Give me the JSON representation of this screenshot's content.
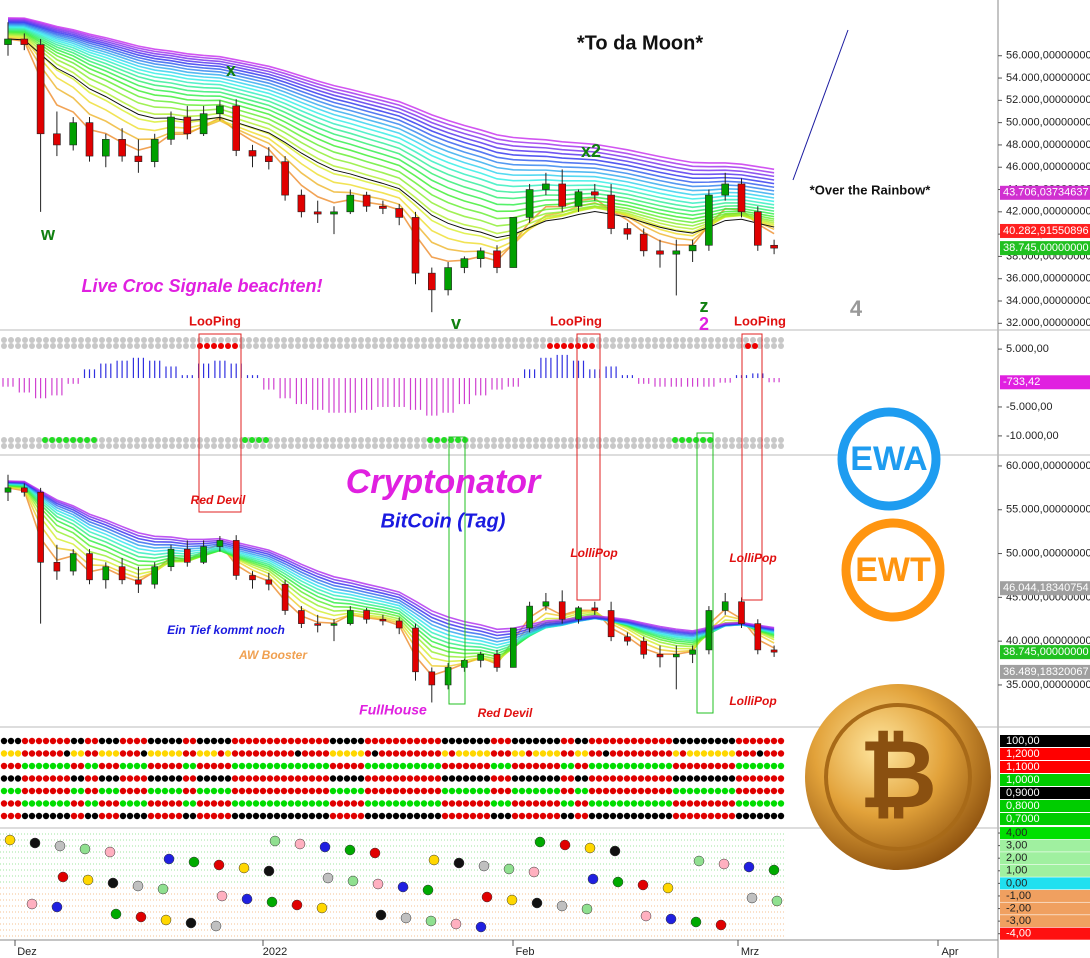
{
  "chart_data": [
    {
      "type": "candlestick",
      "title": "*To da Moon*",
      "open": [
        57000,
        57500,
        57000,
        49000,
        48000,
        50000,
        47000,
        48500,
        47000,
        46500,
        48500,
        50500,
        49000,
        50800,
        51500,
        47500,
        47000,
        46500,
        43500,
        42000,
        41800,
        42000,
        43500,
        42500,
        42300,
        41500,
        36500,
        35000,
        37000,
        37800,
        38500,
        37000,
        41500,
        44000,
        44500,
        42500,
        43800,
        43500,
        40500,
        40000,
        38500,
        38200,
        38500,
        39000,
        43500,
        44500,
        42000,
        39000
      ],
      "high": [
        59000,
        58000,
        57500,
        51000,
        50500,
        50500,
        49000,
        49500,
        48500,
        49000,
        51000,
        51500,
        51500,
        52000,
        52100,
        48000,
        47800,
        47000,
        44000,
        43000,
        42500,
        44000,
        43800,
        43000,
        42700,
        42000,
        37000,
        37500,
        38000,
        38800,
        39000,
        41500,
        44500,
        45500,
        45800,
        44000,
        44500,
        44500,
        41000,
        40500,
        39500,
        39500,
        39500,
        44000,
        45500,
        45000,
        42500,
        39500
      ],
      "low": [
        56000,
        56500,
        42000,
        47000,
        47500,
        46500,
        46000,
        46500,
        45500,
        46000,
        48000,
        48500,
        48800,
        50200,
        47000,
        46000,
        45800,
        43000,
        41500,
        41000,
        40000,
        41800,
        42000,
        41800,
        40800,
        35500,
        33000,
        34500,
        36500,
        37000,
        36500,
        37000,
        41000,
        43500,
        42000,
        42000,
        43000,
        40000,
        39500,
        38000,
        37000,
        34500,
        37500,
        38500,
        43000,
        41500,
        38500,
        38200
      ],
      "close": [
        57500,
        57000,
        49000,
        48000,
        50000,
        47000,
        48500,
        47000,
        46500,
        48500,
        50500,
        49000,
        50800,
        51500,
        47500,
        47000,
        46500,
        43500,
        42000,
        41800,
        42000,
        43500,
        42500,
        42300,
        41500,
        36500,
        35000,
        37000,
        37800,
        38500,
        37000,
        41500,
        44000,
        44500,
        42500,
        43800,
        43500,
        40500,
        40000,
        38500,
        38200,
        38500,
        39000,
        43500,
        44500,
        42000,
        39000,
        38745
      ],
      "colors": {
        "up": "#00a000",
        "down": "#e00000"
      },
      "ylim": [
        31400,
        61000
      ],
      "yticks": [
        {
          "value": 56000,
          "label": "56.000,00000000"
        },
        {
          "value": 54000,
          "label": "54.000,00000000"
        },
        {
          "value": 52000,
          "label": "52.000,00000000"
        },
        {
          "value": 50000,
          "label": "50.000,00000000"
        },
        {
          "value": 48000,
          "label": "48.000,00000000"
        },
        {
          "value": 46000,
          "label": "46.000,00000000"
        },
        {
          "value": 44000,
          "label": "44.000,00000000"
        },
        {
          "value": 42000,
          "label": "42.000,00000000"
        },
        {
          "value": 40000,
          "label": "40.000,00000000"
        },
        {
          "value": 38000,
          "label": "38.000,00000000"
        },
        {
          "value": 36000,
          "label": "36.000,00000000"
        },
        {
          "value": 34000,
          "label": "34.000,00000000"
        },
        {
          "value": 32000,
          "label": "32.000,00000000"
        }
      ],
      "price_tags": [
        {
          "value": 43706.03734637,
          "label": "43.706,03734637",
          "color": "#d030d0"
        },
        {
          "value": 40282.91550896,
          "label": "40.282,91550896",
          "color": "#ff2020"
        },
        {
          "value": 38745,
          "label": "38.745,00000000",
          "color": "#20c020"
        }
      ],
      "annotations": [
        "x",
        "w",
        "x2",
        "v",
        "z",
        "2",
        "4",
        "*Over the Rainbow*",
        "Live Croc Signale beachten!",
        "LooPing",
        "LooPing",
        "LooPing"
      ]
    },
    {
      "type": "bar",
      "values": [
        -1500,
        -2500,
        -3500,
        -3000,
        -1000,
        1500,
        2500,
        3000,
        3500,
        3000,
        2000,
        500,
        2500,
        3000,
        2500,
        500,
        -2000,
        -3500,
        -4500,
        -5500,
        -6000,
        -6000,
        -5500,
        -5000,
        -5000,
        -5500,
        -6500,
        -6000,
        -4500,
        -3000,
        -2000,
        -1500,
        1500,
        3500,
        4000,
        3000,
        1500,
        2000,
        500,
        -1000,
        -1500,
        -1500,
        -1500,
        -1500,
        -800,
        500,
        800,
        -733
      ],
      "colors": {
        "positive": "#3030e0",
        "negative": "#d040d0"
      },
      "ylim": [
        -13300,
        8300
      ],
      "yticks": [
        {
          "value": 5000,
          "label": "5.000,00"
        },
        {
          "value": -5000,
          "label": "-5.000,00"
        },
        {
          "value": -10000,
          "label": "-10.000,00"
        }
      ],
      "price_tags": [
        {
          "value": -733.42,
          "label": "-733,42",
          "color": "#e020e0"
        }
      ]
    },
    {
      "type": "candlestick",
      "title": "Cryptonator",
      "subtitle": "BitCoin (Tag)",
      "ylim": [
        30200,
        61250
      ],
      "yticks": [
        {
          "value": 60000,
          "label": "60.000,00000000"
        },
        {
          "value": 55000,
          "label": "55.000,00000000"
        },
        {
          "value": 50000,
          "label": "50.000,00000000"
        },
        {
          "value": 45000,
          "label": "45.000,00000000"
        },
        {
          "value": 40000,
          "label": "40.000,00000000"
        },
        {
          "value": 35000,
          "label": "35.000,00000000"
        }
      ],
      "price_tags": [
        {
          "value": 46044.18340754,
          "label": "46.044,18340754",
          "color": "#a0a0a0"
        },
        {
          "value": 38745,
          "label": "38.745,00000000",
          "color": "#20c020"
        },
        {
          "value": 36489.18320067,
          "label": "36.489,18320067",
          "color": "#a0a0a0"
        }
      ],
      "annotations": [
        "Red Devil",
        "LolliPop",
        "Ein Tief kommt noch",
        "AW Booster",
        "FullHouse",
        "Red Devil",
        "LolliPop",
        "LolliPop"
      ]
    },
    {
      "type": "dots",
      "row_labels": [
        "100,00",
        "1,2000",
        "1,1000",
        "1,0000",
        "0,9000",
        "0,8000",
        "0,7000"
      ],
      "row_colors": [
        "#000000",
        "#ff0000",
        "#ff0000",
        "#00cc00",
        "#000000",
        "#00cc00",
        "#00cc00"
      ]
    },
    {
      "type": "scatter-dots",
      "ylim": [
        -4.5,
        4.4
      ],
      "yticks": [
        {
          "value": 4,
          "label": "4,00"
        },
        {
          "value": 3,
          "label": "3,00"
        },
        {
          "value": 2,
          "label": "2,00"
        },
        {
          "value": 1,
          "label": "1,00"
        },
        {
          "value": 0,
          "label": "0,00"
        },
        {
          "value": -1,
          "label": "-1,00"
        },
        {
          "value": -2,
          "label": "-2,00"
        },
        {
          "value": -3,
          "label": "-3,00"
        },
        {
          "value": -4,
          "label": "-4,00"
        }
      ],
      "tick_colors": [
        "#00e000",
        "#a0f0a0",
        "#a0f0a0",
        "#a0f0a0",
        "#20e0f0",
        "#f0a060",
        "#f0a060",
        "#f0a060",
        "#ff1010"
      ]
    }
  ],
  "x_axis_labels": [
    "Dez",
    "2022",
    "Feb",
    "Mrz",
    "Apr"
  ],
  "badges": [
    "EWA",
    "EWT"
  ],
  "coin_symbol": "₿"
}
